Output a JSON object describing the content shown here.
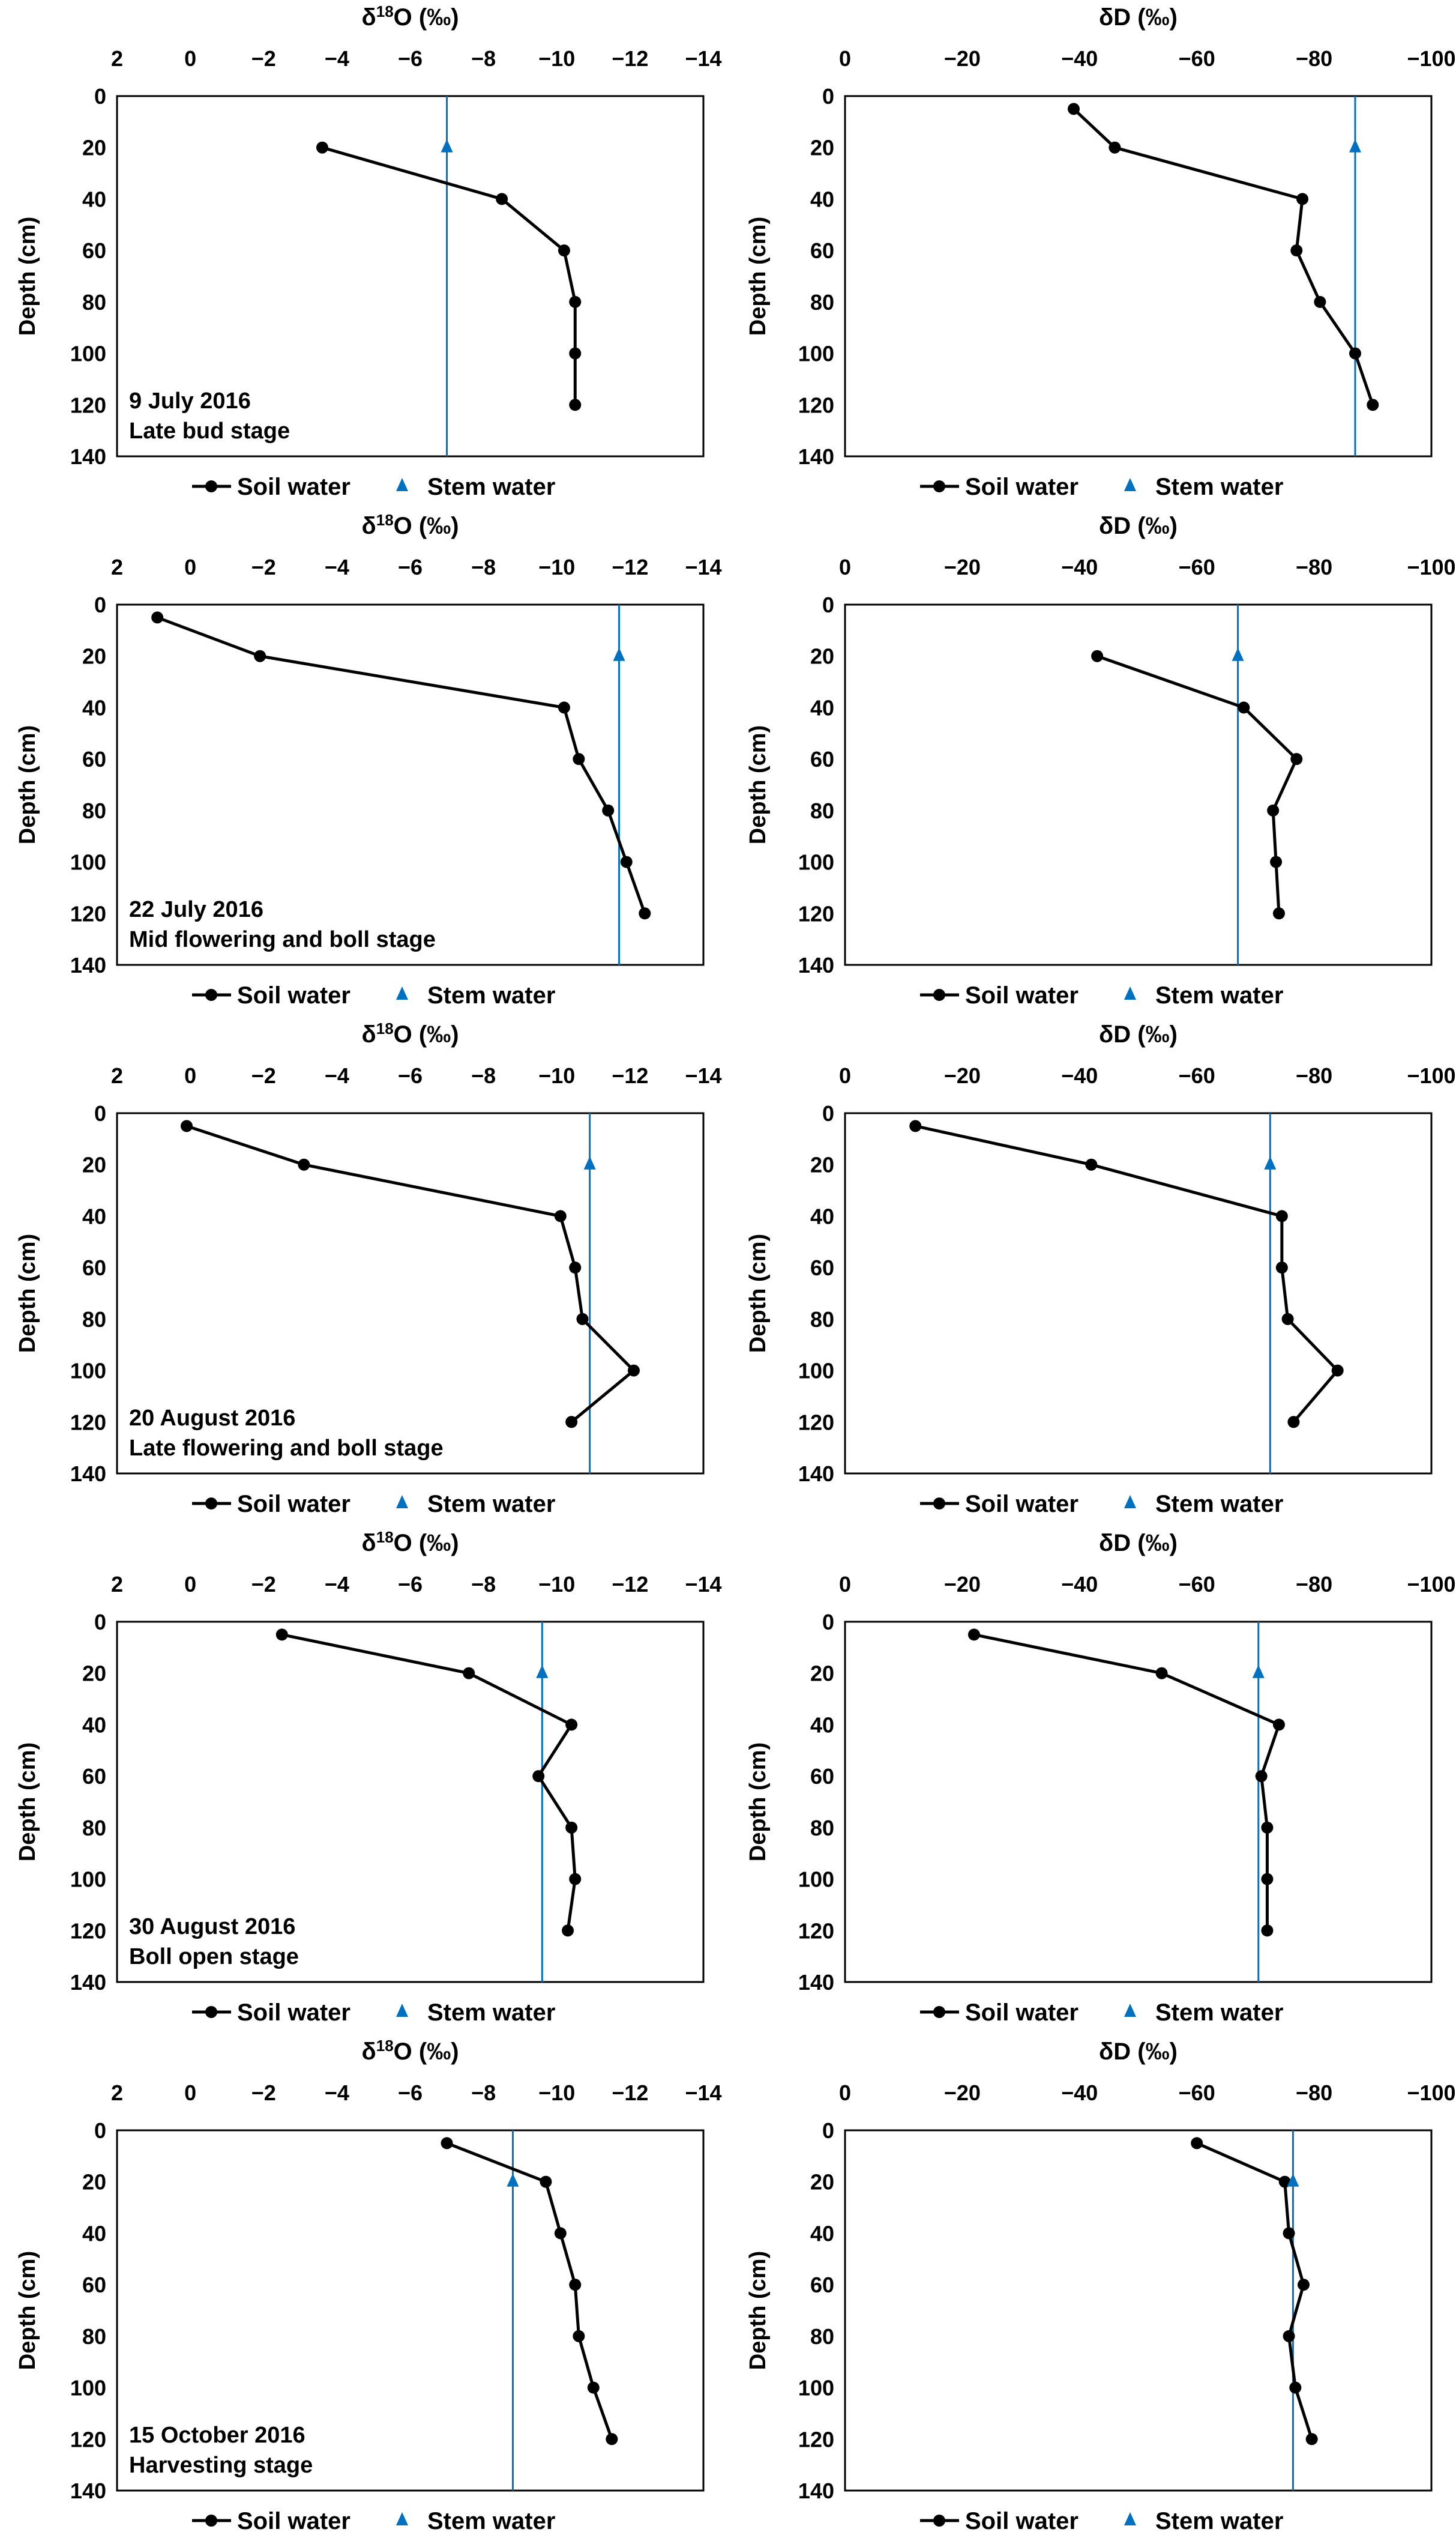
{
  "legend": {
    "soil": "Soil water",
    "stem": "Stem water"
  },
  "colors": {
    "soil": "#000000",
    "stem": "#0070C0"
  },
  "chart_data": [
    {
      "type": "line",
      "title": "δ18O (‰)",
      "isotope": "O",
      "ylabel": "Depth (cm)",
      "xlim": [
        2,
        -14
      ],
      "xticks": [
        2,
        0,
        -2,
        -4,
        -6,
        -8,
        -10,
        -12,
        -14
      ],
      "ylim": [
        0,
        140
      ],
      "yticks": [
        0,
        20,
        40,
        60,
        80,
        100,
        120,
        140
      ],
      "annotation": [
        "9 July 2016",
        "Late bud stage"
      ],
      "soil_water": {
        "depth": [
          20,
          40,
          60,
          80,
          100,
          120
        ],
        "value": [
          -3.6,
          -8.5,
          -10.2,
          -10.5,
          -10.5,
          -10.5
        ]
      },
      "stem_water": {
        "depth": 20,
        "value": -7.0
      }
    },
    {
      "type": "line",
      "title": "δD (‰)",
      "isotope": "D",
      "ylabel": "Depth (cm)",
      "xlim": [
        0,
        -100
      ],
      "xticks": [
        0,
        -20,
        -40,
        -60,
        -80,
        -100
      ],
      "ylim": [
        0,
        140
      ],
      "yticks": [
        0,
        20,
        40,
        60,
        80,
        100,
        120,
        140
      ],
      "annotation": [],
      "soil_water": {
        "depth": [
          5,
          20,
          40,
          60,
          80,
          100,
          120
        ],
        "value": [
          -39,
          -46,
          -78,
          -77,
          -81,
          -87,
          -90
        ]
      },
      "stem_water": {
        "depth": 20,
        "value": -87
      }
    },
    {
      "type": "line",
      "title": "δ18O (‰)",
      "isotope": "O",
      "ylabel": "Depth (cm)",
      "xlim": [
        2,
        -14
      ],
      "xticks": [
        2,
        0,
        -2,
        -4,
        -6,
        -8,
        -10,
        -12,
        -14
      ],
      "ylim": [
        0,
        140
      ],
      "yticks": [
        0,
        20,
        40,
        60,
        80,
        100,
        120,
        140
      ],
      "annotation": [
        "22 July 2016",
        "Mid flowering and boll stage"
      ],
      "soil_water": {
        "depth": [
          5,
          20,
          40,
          60,
          80,
          100,
          120
        ],
        "value": [
          0.9,
          -1.9,
          -10.2,
          -10.6,
          -11.4,
          -11.9,
          -12.4
        ]
      },
      "stem_water": {
        "depth": 20,
        "value": -11.7
      }
    },
    {
      "type": "line",
      "title": "δD (‰)",
      "isotope": "D",
      "ylabel": "Depth (cm)",
      "xlim": [
        0,
        -100
      ],
      "xticks": [
        0,
        -20,
        -40,
        -60,
        -80,
        -100
      ],
      "ylim": [
        0,
        140
      ],
      "yticks": [
        0,
        20,
        40,
        60,
        80,
        100,
        120,
        140
      ],
      "annotation": [],
      "soil_water": {
        "depth": [
          20,
          40,
          60,
          80,
          100,
          120
        ],
        "value": [
          -43,
          -68,
          -77,
          -73,
          -73.5,
          -74
        ]
      },
      "stem_water": {
        "depth": 20,
        "value": -67
      }
    },
    {
      "type": "line",
      "title": "δ18O (‰)",
      "isotope": "O",
      "ylabel": "Depth (cm)",
      "xlim": [
        2,
        -14
      ],
      "xticks": [
        2,
        0,
        -2,
        -4,
        -6,
        -8,
        -10,
        -12,
        -14
      ],
      "ylim": [
        0,
        140
      ],
      "yticks": [
        0,
        20,
        40,
        60,
        80,
        100,
        120,
        140
      ],
      "annotation": [
        "20 August 2016",
        "Late flowering and boll stage"
      ],
      "soil_water": {
        "depth": [
          5,
          20,
          40,
          60,
          80,
          100,
          120
        ],
        "value": [
          0.1,
          -3.1,
          -10.1,
          -10.5,
          -10.7,
          -12.1,
          -10.4
        ]
      },
      "stem_water": {
        "depth": 20,
        "value": -10.9
      }
    },
    {
      "type": "line",
      "title": "δD (‰)",
      "isotope": "D",
      "ylabel": "Depth (cm)",
      "xlim": [
        0,
        -100
      ],
      "xticks": [
        0,
        -20,
        -40,
        -60,
        -80,
        -100
      ],
      "ylim": [
        0,
        140
      ],
      "yticks": [
        0,
        20,
        40,
        60,
        80,
        100,
        120,
        140
      ],
      "annotation": [],
      "soil_water": {
        "depth": [
          5,
          20,
          40,
          60,
          80,
          100,
          120
        ],
        "value": [
          -12,
          -42,
          -74.5,
          -74.5,
          -75.5,
          -84,
          -76.5
        ]
      },
      "stem_water": {
        "depth": 20,
        "value": -72.5
      }
    },
    {
      "type": "line",
      "title": "δ18O (‰)",
      "isotope": "O",
      "ylabel": "Depth (cm)",
      "xlim": [
        2,
        -14
      ],
      "xticks": [
        2,
        0,
        -2,
        -4,
        -6,
        -8,
        -10,
        -12,
        -14
      ],
      "ylim": [
        0,
        140
      ],
      "yticks": [
        0,
        20,
        40,
        60,
        80,
        100,
        120,
        140
      ],
      "annotation": [
        "30 August 2016",
        "Boll open stage"
      ],
      "soil_water": {
        "depth": [
          5,
          20,
          40,
          60,
          80,
          100,
          120
        ],
        "value": [
          -2.5,
          -7.6,
          -10.4,
          -9.5,
          -10.4,
          -10.5,
          -10.3
        ]
      },
      "stem_water": {
        "depth": 20,
        "value": -9.6
      }
    },
    {
      "type": "line",
      "title": "δD (‰)",
      "isotope": "D",
      "ylabel": "Depth (cm)",
      "xlim": [
        0,
        -100
      ],
      "xticks": [
        0,
        -20,
        -40,
        -60,
        -80,
        -100
      ],
      "ylim": [
        0,
        140
      ],
      "yticks": [
        0,
        20,
        40,
        60,
        80,
        100,
        120,
        140
      ],
      "annotation": [],
      "soil_water": {
        "depth": [
          5,
          20,
          40,
          60,
          80,
          100,
          120
        ],
        "value": [
          -22,
          -54,
          -74,
          -71,
          -72,
          -72,
          -72
        ]
      },
      "stem_water": {
        "depth": 20,
        "value": -70.5
      }
    },
    {
      "type": "line",
      "title": "δ18O (‰)",
      "isotope": "O",
      "ylabel": "Depth (cm)",
      "xlim": [
        2,
        -14
      ],
      "xticks": [
        2,
        0,
        -2,
        -4,
        -6,
        -8,
        -10,
        -12,
        -14
      ],
      "ylim": [
        0,
        140
      ],
      "yticks": [
        0,
        20,
        40,
        60,
        80,
        100,
        120,
        140
      ],
      "annotation": [
        "15 October 2016",
        "Harvesting stage"
      ],
      "soil_water": {
        "depth": [
          5,
          20,
          40,
          60,
          80,
          100,
          120
        ],
        "value": [
          -7.0,
          -9.7,
          -10.1,
          -10.5,
          -10.6,
          -11.0,
          -11.5
        ]
      },
      "stem_water": {
        "depth": 20,
        "value": -8.8
      }
    },
    {
      "type": "line",
      "title": "δD (‰)",
      "isotope": "D",
      "ylabel": "Depth (cm)",
      "xlim": [
        0,
        -100
      ],
      "xticks": [
        0,
        -20,
        -40,
        -60,
        -80,
        -100
      ],
      "ylim": [
        0,
        140
      ],
      "yticks": [
        0,
        20,
        40,
        60,
        80,
        100,
        120,
        140
      ],
      "annotation": [],
      "soil_water": {
        "depth": [
          5,
          20,
          40,
          60,
          80,
          100,
          120
        ],
        "value": [
          -60,
          -75,
          -75.7,
          -78.2,
          -75.7,
          -76.8,
          -79.6
        ]
      },
      "stem_water": {
        "depth": 20,
        "value": -76.4
      }
    }
  ]
}
